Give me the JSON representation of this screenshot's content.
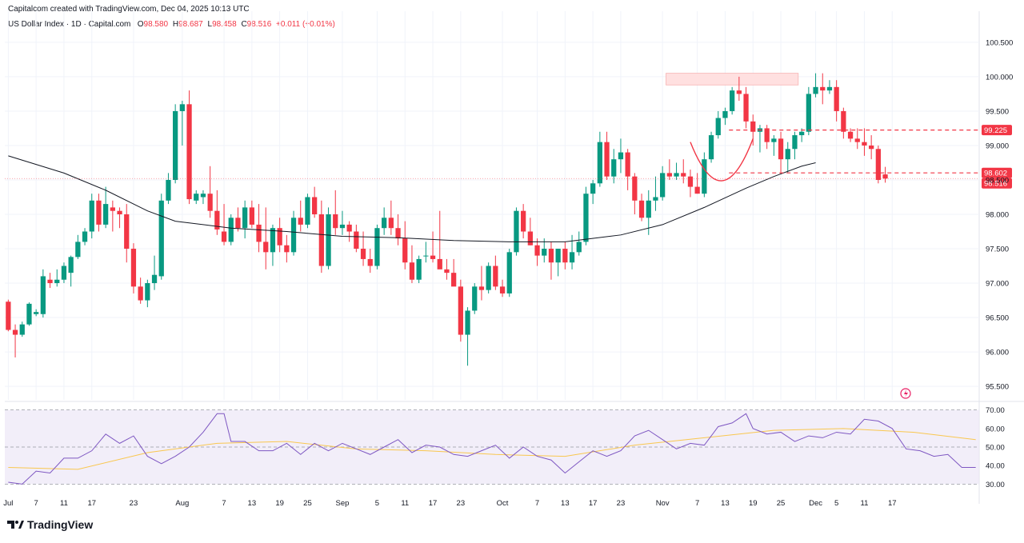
{
  "header": {
    "created_by": "Capitalcom created with TradingView.com, Dec 04, 2025 10:13 UTC"
  },
  "legend": {
    "symbol": "US Dollar Index · 1D · Capital.com",
    "o_label": "O",
    "o_value": "98.580",
    "h_label": "H",
    "h_value": "98.687",
    "l_label": "L",
    "l_value": "98.458",
    "c_label": "C",
    "c_value": "98.516",
    "change": "+0.011 (+0.01%)"
  },
  "branding": {
    "logo_text": "TradingView"
  },
  "colors": {
    "up": "#089981",
    "down": "#f23645",
    "ma": "#131722",
    "rsi_line": "#7e57c2",
    "rsi_ma": "#f9c74f",
    "rsi_band": "#ede7f6",
    "zone": "#ffe0e0",
    "cup": "#f23645"
  },
  "chart_data": {
    "type": "candlestick",
    "price_axis": {
      "ticks": [
        "100.500",
        "100.000",
        "99.500",
        "99.000",
        "98.500",
        "98.000",
        "97.500",
        "97.000",
        "96.500",
        "96.000",
        "95.500"
      ],
      "ylim": [
        95.35,
        100.65
      ]
    },
    "x_axis": {
      "ticks": [
        "Jul",
        "7",
        "11",
        "17",
        "23",
        "Aug",
        "7",
        "13",
        "19",
        "25",
        "Sep",
        "5",
        "11",
        "17",
        "23",
        "Oct",
        "7",
        "13",
        "17",
        "23",
        "Nov",
        "7",
        "13",
        "19",
        "25",
        "Dec",
        "5",
        "11",
        "17"
      ],
      "tick_index": [
        0,
        4,
        8,
        12,
        18,
        25,
        31,
        35,
        39,
        43,
        48,
        53,
        57,
        61,
        65,
        71,
        76,
        80,
        84,
        88,
        94,
        99,
        103,
        107,
        111,
        116,
        119,
        123,
        127
      ]
    },
    "price_tags": [
      {
        "label": "99.225",
        "value": 99.225,
        "color": "#f23645"
      },
      {
        "label": "98.602",
        "value": 98.602,
        "color": "#f23645"
      },
      {
        "label": "98.516",
        "value": 98.516,
        "color": "#f23645"
      }
    ],
    "resistance_zone": {
      "from_index": 95,
      "to_index": 113,
      "low": 99.88,
      "high": 100.05
    },
    "neckline_levels": [
      99.225,
      98.602
    ],
    "series_ohlc": [
      [
        96.73,
        96.76,
        96.3,
        96.32
      ],
      [
        96.32,
        96.4,
        95.92,
        96.25
      ],
      [
        96.25,
        96.44,
        96.22,
        96.4
      ],
      [
        96.4,
        96.72,
        96.38,
        96.7
      ],
      [
        96.55,
        96.62,
        96.52,
        96.58
      ],
      [
        96.55,
        97.2,
        96.5,
        97.1
      ],
      [
        97.05,
        97.15,
        96.93,
        97.0
      ],
      [
        97.0,
        97.2,
        96.95,
        97.05
      ],
      [
        97.05,
        97.3,
        97.0,
        97.25
      ],
      [
        97.15,
        97.4,
        96.95,
        97.38
      ],
      [
        97.38,
        97.7,
        97.35,
        97.6
      ],
      [
        97.6,
        97.8,
        97.55,
        97.75
      ],
      [
        97.75,
        98.3,
        97.65,
        98.2
      ],
      [
        98.2,
        98.3,
        97.75,
        97.85
      ],
      [
        97.85,
        98.4,
        97.8,
        98.15
      ],
      [
        98.1,
        98.2,
        97.75,
        98.05
      ],
      [
        98.05,
        98.1,
        97.8,
        98.0
      ],
      [
        98.0,
        98.15,
        97.3,
        97.5
      ],
      [
        97.5,
        97.58,
        96.85,
        96.95
      ],
      [
        96.95,
        97.08,
        96.7,
        96.75
      ],
      [
        96.75,
        97.05,
        96.65,
        97.0
      ],
      [
        97.0,
        97.4,
        96.9,
        97.12
      ],
      [
        97.1,
        98.3,
        97.05,
        98.2
      ],
      [
        98.2,
        98.6,
        98.15,
        98.5
      ],
      [
        98.5,
        99.6,
        98.45,
        99.5
      ],
      [
        99.5,
        99.65,
        99.0,
        99.6
      ],
      [
        99.6,
        99.8,
        98.15,
        98.22
      ],
      [
        98.2,
        98.35,
        98.15,
        98.3
      ],
      [
        98.25,
        98.35,
        98.15,
        98.3
      ],
      [
        98.3,
        98.7,
        97.95,
        98.05
      ],
      [
        98.05,
        98.35,
        97.7,
        97.78
      ],
      [
        97.75,
        98.15,
        97.55,
        97.6
      ],
      [
        97.6,
        98.0,
        97.55,
        97.95
      ],
      [
        97.95,
        98.1,
        97.75,
        97.8
      ],
      [
        97.8,
        98.2,
        97.65,
        98.1
      ],
      [
        98.1,
        98.2,
        97.8,
        97.85
      ],
      [
        97.85,
        98.15,
        97.45,
        97.6
      ],
      [
        97.6,
        98.1,
        97.2,
        97.45
      ],
      [
        97.45,
        97.85,
        97.25,
        97.8
      ],
      [
        97.8,
        97.95,
        97.45,
        97.55
      ],
      [
        97.55,
        97.7,
        97.3,
        97.45
      ],
      [
        97.45,
        98.05,
        97.4,
        97.95
      ],
      [
        97.95,
        98.2,
        97.75,
        97.85
      ],
      [
        97.85,
        98.3,
        97.8,
        98.25
      ],
      [
        98.25,
        98.4,
        97.95,
        98.0
      ],
      [
        98.0,
        98.2,
        97.15,
        97.25
      ],
      [
        97.25,
        98.1,
        97.2,
        98.0
      ],
      [
        98.0,
        98.35,
        97.7,
        97.8
      ],
      [
        97.8,
        98.05,
        97.7,
        97.85
      ],
      [
        97.85,
        97.9,
        97.6,
        97.75
      ],
      [
        97.75,
        97.85,
        97.45,
        97.5
      ],
      [
        97.5,
        97.75,
        97.25,
        97.35
      ],
      [
        97.35,
        97.5,
        97.15,
        97.25
      ],
      [
        97.25,
        97.85,
        97.2,
        97.8
      ],
      [
        97.8,
        98.1,
        97.7,
        97.95
      ],
      [
        97.95,
        98.2,
        97.7,
        97.8
      ],
      [
        97.8,
        98.0,
        97.55,
        97.65
      ],
      [
        97.65,
        97.9,
        97.2,
        97.3
      ],
      [
        97.3,
        97.55,
        97.0,
        97.05
      ],
      [
        97.05,
        97.4,
        97.0,
        97.35
      ],
      [
        97.4,
        97.6,
        97.3,
        97.4
      ],
      [
        97.4,
        97.75,
        97.3,
        97.35
      ],
      [
        97.35,
        98.05,
        97.25,
        97.2
      ],
      [
        97.2,
        97.35,
        97.05,
        97.15
      ],
      [
        97.15,
        97.35,
        97.0,
        96.95
      ],
      [
        96.95,
        97.05,
        96.15,
        96.25
      ],
      [
        96.25,
        96.65,
        95.8,
        96.6
      ],
      [
        96.6,
        97.0,
        96.55,
        96.95
      ],
      [
        96.95,
        97.25,
        96.75,
        96.9
      ],
      [
        96.9,
        97.3,
        96.85,
        97.25
      ],
      [
        97.25,
        97.4,
        96.9,
        96.95
      ],
      [
        96.95,
        97.05,
        96.8,
        96.85
      ],
      [
        96.85,
        97.5,
        96.8,
        97.45
      ],
      [
        97.45,
        98.1,
        97.4,
        98.05
      ],
      [
        98.05,
        98.15,
        97.65,
        97.75
      ],
      [
        97.75,
        97.95,
        97.55,
        97.55
      ],
      [
        97.55,
        97.65,
        97.25,
        97.4
      ],
      [
        97.4,
        97.65,
        97.3,
        97.5
      ],
      [
        97.5,
        97.6,
        97.05,
        97.3
      ],
      [
        97.3,
        97.5,
        97.1,
        97.5
      ],
      [
        97.5,
        97.6,
        97.2,
        97.3
      ],
      [
        97.3,
        97.7,
        97.2,
        97.45
      ],
      [
        97.45,
        97.75,
        97.4,
        97.6
      ],
      [
        97.6,
        98.4,
        97.55,
        98.3
      ],
      [
        98.3,
        98.5,
        98.15,
        98.45
      ],
      [
        98.45,
        99.2,
        98.4,
        99.05
      ],
      [
        99.05,
        99.2,
        98.5,
        98.55
      ],
      [
        98.55,
        98.95,
        98.45,
        98.8
      ],
      [
        98.8,
        99.1,
        98.6,
        98.9
      ],
      [
        98.9,
        98.95,
        98.35,
        98.55
      ],
      [
        98.55,
        98.6,
        98.0,
        98.2
      ],
      [
        98.2,
        98.3,
        97.9,
        97.95
      ]
    ],
    "series_ohlc_2": [
      [
        97.95,
        98.35,
        97.7,
        98.2
      ],
      [
        98.2,
        98.55,
        98.05,
        98.25
      ],
      [
        98.25,
        98.7,
        98.2,
        98.6
      ],
      [
        98.6,
        98.8,
        98.5,
        98.55
      ],
      [
        98.55,
        98.75,
        98.5,
        98.6
      ],
      [
        98.6,
        98.8,
        98.45,
        98.55
      ],
      [
        98.55,
        98.65,
        98.25,
        98.4
      ],
      [
        98.4,
        98.6,
        98.3,
        98.3
      ],
      [
        98.3,
        98.9,
        98.25,
        98.8
      ],
      [
        98.8,
        99.2,
        98.75,
        99.15
      ],
      [
        99.15,
        99.5,
        99.1,
        99.4
      ],
      [
        99.4,
        99.55,
        99.3,
        99.5
      ],
      [
        99.5,
        99.85,
        99.45,
        99.8
      ],
      [
        99.8,
        100.0,
        99.65,
        99.75
      ],
      [
        99.75,
        99.85,
        99.25,
        99.35
      ],
      [
        99.35,
        99.45,
        99.0,
        99.2
      ],
      [
        99.2,
        99.3,
        98.9,
        99.25
      ],
      [
        99.25,
        99.3,
        98.95,
        99.05
      ],
      [
        99.05,
        99.15,
        98.85,
        99.1
      ],
      [
        99.1,
        99.2,
        98.6,
        98.8
      ],
      [
        98.8,
        99.05,
        98.6,
        98.95
      ],
      [
        98.95,
        99.2,
        98.8,
        99.15
      ],
      [
        99.15,
        99.25,
        99.05,
        99.2
      ],
      [
        99.2,
        99.85,
        99.15,
        99.75
      ],
      [
        99.75,
        100.05,
        99.7,
        99.85
      ],
      [
        99.85,
        100.05,
        99.6,
        99.8
      ],
      [
        99.8,
        99.95,
        99.75,
        99.85
      ],
      [
        99.85,
        99.95,
        99.35,
        99.5
      ],
      [
        99.5,
        99.55,
        99.1,
        99.2
      ],
      [
        99.2,
        99.25,
        99.05,
        99.1
      ],
      [
        99.1,
        99.25,
        98.95,
        99.05
      ],
      [
        99.05,
        99.25,
        98.85,
        99.0
      ],
      [
        99.0,
        99.15,
        98.8,
        98.95
      ],
      [
        98.95,
        99.0,
        98.45,
        98.5
      ],
      [
        98.58,
        98.69,
        98.46,
        98.52
      ]
    ],
    "moving_average": [
      [
        0,
        98.85
      ],
      [
        8,
        98.6
      ],
      [
        14,
        98.35
      ],
      [
        20,
        98.05
      ],
      [
        24,
        97.9
      ],
      [
        32,
        97.8
      ],
      [
        40,
        97.75
      ],
      [
        48,
        97.68
      ],
      [
        56,
        97.66
      ],
      [
        64,
        97.62
      ],
      [
        72,
        97.6
      ],
      [
        80,
        97.6
      ],
      [
        88,
        97.7
      ],
      [
        94,
        97.85
      ],
      [
        100,
        98.1
      ],
      [
        106,
        98.38
      ],
      [
        110,
        98.55
      ],
      [
        114,
        98.7
      ],
      [
        116,
        98.75
      ]
    ],
    "rsi_axis": {
      "ticks": [
        "70.00",
        "60.00",
        "50.00",
        "40.00",
        "30.00"
      ],
      "ylim": [
        28,
        72
      ]
    },
    "rsi": [
      [
        0,
        31
      ],
      [
        2,
        30
      ],
      [
        4,
        37
      ],
      [
        6,
        36
      ],
      [
        8,
        44
      ],
      [
        10,
        44
      ],
      [
        12,
        48
      ],
      [
        14,
        57
      ],
      [
        16,
        52
      ],
      [
        18,
        56
      ],
      [
        20,
        45
      ],
      [
        22,
        41
      ],
      [
        24,
        45
      ],
      [
        26,
        50
      ],
      [
        28,
        58
      ],
      [
        30,
        68
      ],
      [
        31,
        68
      ],
      [
        32,
        53
      ],
      [
        34,
        53
      ],
      [
        36,
        48
      ],
      [
        38,
        48
      ],
      [
        40,
        52
      ],
      [
        42,
        46
      ],
      [
        44,
        52
      ],
      [
        46,
        48
      ],
      [
        48,
        52
      ],
      [
        50,
        49
      ],
      [
        52,
        46
      ],
      [
        54,
        50
      ],
      [
        56,
        54
      ],
      [
        58,
        47
      ],
      [
        60,
        51
      ],
      [
        62,
        50
      ],
      [
        64,
        46
      ],
      [
        66,
        45
      ],
      [
        68,
        48
      ],
      [
        70,
        51
      ],
      [
        72,
        44
      ],
      [
        74,
        50
      ],
      [
        76,
        45
      ],
      [
        78,
        43
      ],
      [
        80,
        36
      ],
      [
        82,
        42
      ],
      [
        84,
        48
      ],
      [
        86,
        45
      ],
      [
        88,
        48
      ],
      [
        90,
        56
      ],
      [
        92,
        59
      ],
      [
        94,
        54
      ],
      [
        96,
        49
      ],
      [
        98,
        52
      ],
      [
        100,
        51
      ],
      [
        102,
        61
      ],
      [
        104,
        63
      ],
      [
        106,
        68
      ],
      [
        107,
        60
      ],
      [
        109,
        57
      ],
      [
        111,
        58
      ],
      [
        113,
        53
      ],
      [
        115,
        56
      ],
      [
        117,
        55
      ],
      [
        119,
        58
      ],
      [
        121,
        57
      ],
      [
        123,
        65
      ],
      [
        125,
        64
      ],
      [
        127,
        60
      ],
      [
        129,
        49
      ],
      [
        131,
        48
      ],
      [
        133,
        45
      ],
      [
        135,
        46
      ],
      [
        137,
        39
      ],
      [
        139,
        39
      ]
    ],
    "rsi_ma": [
      [
        0,
        39
      ],
      [
        10,
        38
      ],
      [
        20,
        47
      ],
      [
        30,
        52
      ],
      [
        40,
        53
      ],
      [
        50,
        49
      ],
      [
        60,
        48
      ],
      [
        70,
        46
      ],
      [
        80,
        45
      ],
      [
        90,
        51
      ],
      [
        100,
        55
      ],
      [
        110,
        59
      ],
      [
        120,
        60
      ],
      [
        130,
        58
      ],
      [
        139,
        54
      ]
    ],
    "title": "US Dollar Index · 1D · Capital.com",
    "xlabel": "",
    "ylabel": ""
  }
}
